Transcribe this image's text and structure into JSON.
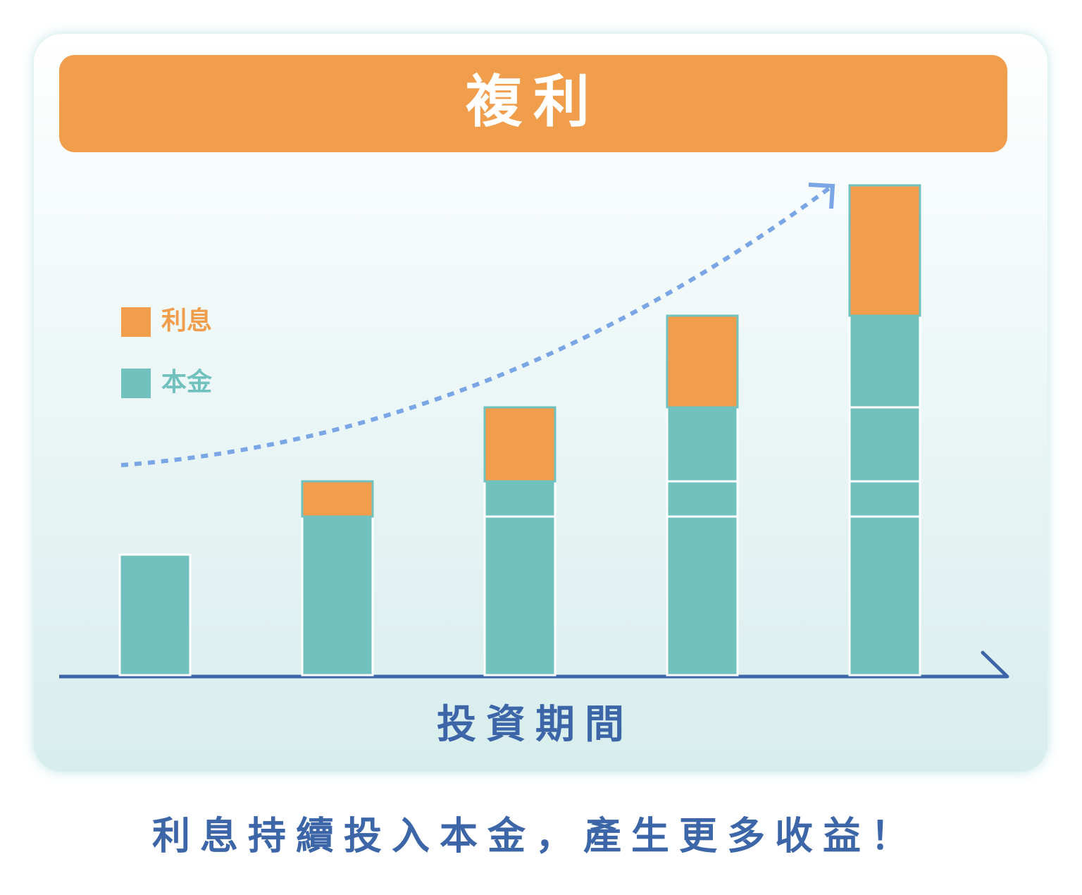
{
  "chart_data": {
    "type": "stacked_segments",
    "title": "複利",
    "x_label": "投資期間",
    "caption": "利息持續投入本金，產生更多收益！",
    "series": [
      {
        "name": "利息",
        "color": "#f09d4c"
      },
      {
        "name": "本金",
        "color": "#71c1bf"
      }
    ],
    "bars": [
      [
        {
          "series": 1,
          "value": 171
        }
      ],
      [
        {
          "series": 1,
          "value": 225
        },
        {
          "series": 0,
          "value": 50
        }
      ],
      [
        {
          "series": 1,
          "value": 225
        },
        {
          "series": 1,
          "value": 50
        },
        {
          "series": 0,
          "value": 105
        }
      ],
      [
        {
          "series": 1,
          "value": 225
        },
        {
          "series": 1,
          "value": 50
        },
        {
          "series": 1,
          "value": 105
        },
        {
          "series": 0,
          "value": 130
        }
      ],
      [
        {
          "series": 1,
          "value": 225
        },
        {
          "series": 1,
          "value": 50
        },
        {
          "series": 1,
          "value": 105
        },
        {
          "series": 1,
          "value": 130
        },
        {
          "series": 0,
          "value": 185
        }
      ]
    ],
    "ylim": [
      0,
      700
    ]
  }
}
